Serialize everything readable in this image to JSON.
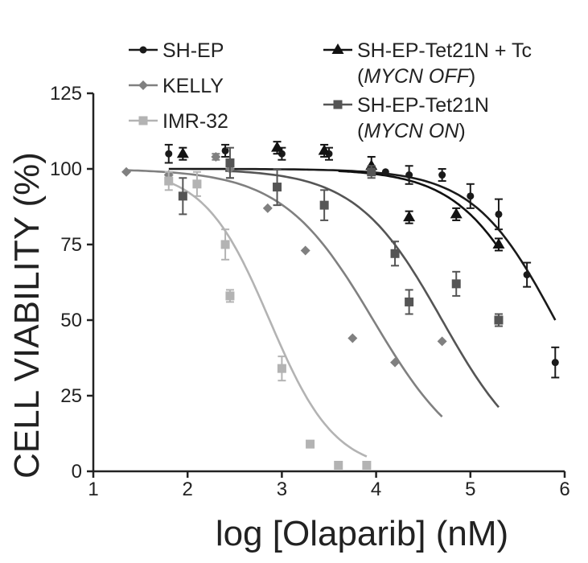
{
  "chart_data": {
    "type": "scatter",
    "title": "",
    "xlabel": "log [Olaparib] (nM)",
    "ylabel": "CELL VIABILITY (%)",
    "xlim": [
      1,
      6
    ],
    "ylim": [
      0,
      125
    ],
    "xticks": [
      "1",
      "2",
      "3",
      "4",
      "5",
      "6"
    ],
    "yticks": [
      "0",
      "25",
      "50",
      "75",
      "100",
      "125"
    ],
    "grid": false,
    "legend_position": "top",
    "series": [
      {
        "name": "SH-EP",
        "sub": "",
        "color": "#1a1a1a",
        "marker": "circle",
        "points": [
          {
            "x": 1.8,
            "y": 105,
            "err": 3
          },
          {
            "x": 2.4,
            "y": 106,
            "err": 2
          },
          {
            "x": 3.0,
            "y": 105,
            "err": 2
          },
          {
            "x": 3.5,
            "y": 105,
            "err": 2
          },
          {
            "x": 4.1,
            "y": 99,
            "err": 0
          },
          {
            "x": 4.35,
            "y": 98,
            "err": 3
          },
          {
            "x": 4.7,
            "y": 98,
            "err": 2
          },
          {
            "x": 5.0,
            "y": 91,
            "err": 4
          },
          {
            "x": 5.3,
            "y": 85,
            "err": 5
          },
          {
            "x": 5.6,
            "y": 65,
            "err": 4
          },
          {
            "x": 5.9,
            "y": 36,
            "err": 5
          }
        ],
        "curve": {
          "top": 100,
          "bottom": 0,
          "logIC50": 5.9,
          "hill": 1.0,
          "x_start": 1.8,
          "x_end": 5.9
        }
      },
      {
        "name": "KELLY",
        "sub": "",
        "color": "#808080",
        "marker": "diamond",
        "points": [
          {
            "x": 1.35,
            "y": 99,
            "err": 0
          },
          {
            "x": 1.8,
            "y": 98,
            "err": 0
          },
          {
            "x": 2.3,
            "y": 104,
            "err": 1
          },
          {
            "x": 2.45,
            "y": 100,
            "err": 3
          },
          {
            "x": 2.85,
            "y": 87,
            "err": 0
          },
          {
            "x": 3.25,
            "y": 73,
            "err": 0
          },
          {
            "x": 3.75,
            "y": 44,
            "err": 0
          },
          {
            "x": 4.2,
            "y": 36,
            "err": 0
          },
          {
            "x": 4.7,
            "y": 43,
            "err": 0
          }
        ],
        "curve": {
          "top": 100,
          "bottom": 0,
          "logIC50": 3.97,
          "hill": 0.9,
          "x_start": 1.35,
          "x_end": 4.7
        }
      },
      {
        "name": "IMR-32",
        "sub": "",
        "color": "#b3b3b3",
        "marker": "square",
        "points": [
          {
            "x": 1.8,
            "y": 96,
            "err": 3
          },
          {
            "x": 2.1,
            "y": 95,
            "err": 4
          },
          {
            "x": 2.4,
            "y": 75,
            "err": 5
          },
          {
            "x": 2.45,
            "y": 58,
            "err": 2
          },
          {
            "x": 3.0,
            "y": 34,
            "err": 4
          },
          {
            "x": 3.3,
            "y": 9,
            "err": 0
          },
          {
            "x": 3.6,
            "y": 2,
            "err": 0
          },
          {
            "x": 3.9,
            "y": 2,
            "err": 0
          }
        ],
        "curve": {
          "top": 100,
          "bottom": 0,
          "logIC50": 2.87,
          "hill": 1.25,
          "x_start": 1.8,
          "x_end": 3.9
        }
      },
      {
        "name": "SH-EP-Tet21N + Tc",
        "sub": "MYCN OFF",
        "color": "#111111",
        "marker": "triangle",
        "points": [
          {
            "x": 1.95,
            "y": 105,
            "err": 2
          },
          {
            "x": 2.95,
            "y": 107,
            "err": 2
          },
          {
            "x": 3.45,
            "y": 106,
            "err": 2
          },
          {
            "x": 3.95,
            "y": 101,
            "err": 3
          },
          {
            "x": 4.35,
            "y": 84,
            "err": 2
          },
          {
            "x": 4.85,
            "y": 85,
            "err": 2
          },
          {
            "x": 5.3,
            "y": 75,
            "err": 2
          }
        ],
        "curve": {
          "top": 100,
          "bottom": 0,
          "logIC50": 5.75,
          "hill": 1.0,
          "x_start": 3.6,
          "x_end": 5.3
        }
      },
      {
        "name": "SH-EP-Tet21N",
        "sub": "MYCN ON",
        "color": "#555555",
        "marker": "square",
        "points": [
          {
            "x": 1.95,
            "y": 91,
            "err": 6
          },
          {
            "x": 2.45,
            "y": 102,
            "err": 5
          },
          {
            "x": 2.95,
            "y": 94,
            "err": 6
          },
          {
            "x": 3.45,
            "y": 88,
            "err": 5
          },
          {
            "x": 3.95,
            "y": 99,
            "err": 2
          },
          {
            "x": 4.2,
            "y": 72,
            "err": 4
          },
          {
            "x": 4.35,
            "y": 56,
            "err": 4
          },
          {
            "x": 4.85,
            "y": 62,
            "err": 4
          },
          {
            "x": 5.3,
            "y": 50,
            "err": 2
          }
        ],
        "curve": {
          "top": 100,
          "bottom": 0,
          "logIC50": 4.7,
          "hill": 0.95,
          "x_start": 2.4,
          "x_end": 5.3
        }
      }
    ]
  }
}
